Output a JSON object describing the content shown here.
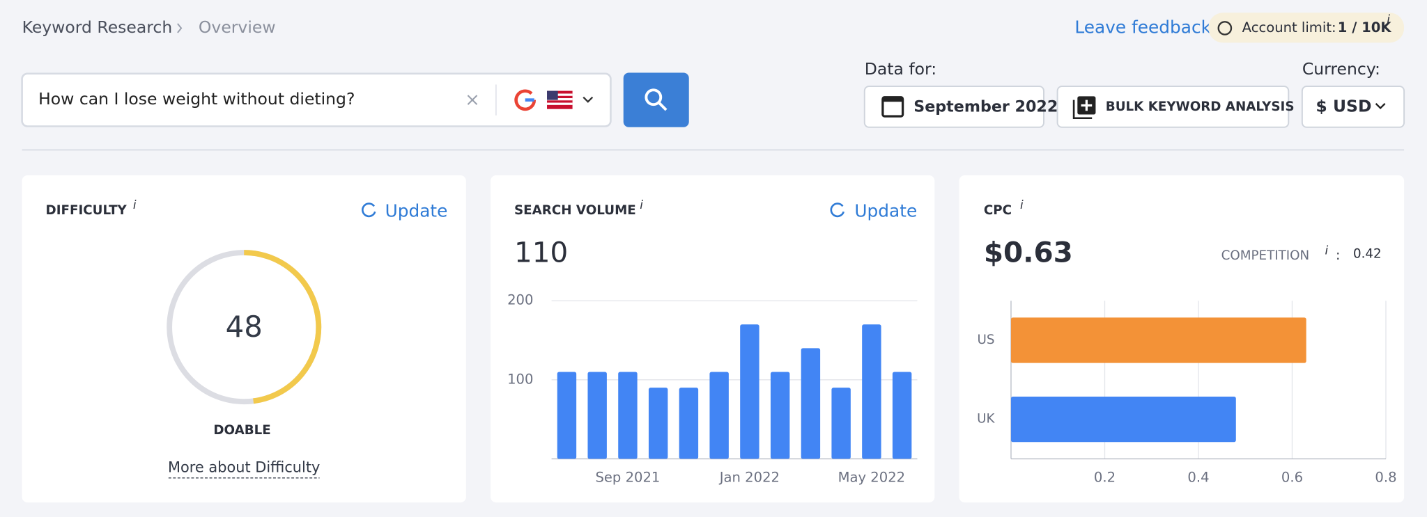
{
  "breadcrumb": [
    "Keyword Research",
    "Overview"
  ],
  "feedback": "Leave feedback",
  "account_limit": {
    "label": "Account limit:",
    "value": "1 / 10K",
    "info": "i"
  },
  "search": {
    "query": "How can I lose weight without dieting?"
  },
  "data_for": {
    "label": "Data for:",
    "month": "September 2022"
  },
  "bulk": "BULK KEYWORD ANALYSIS",
  "currency": {
    "label": "Currency:",
    "value": "$ USD"
  },
  "difficulty": {
    "title": "DIFFICULTY",
    "info": "i",
    "update": "Update",
    "value": 48,
    "rating": "DOABLE",
    "more": "More about Difficulty"
  },
  "chart_data": [
    {
      "type": "bar",
      "title": "SEARCH VOLUME",
      "info": "i",
      "update": "Update",
      "total": 110,
      "categories": [
        null,
        null,
        "Sep 2021",
        null,
        null,
        null,
        "Jan 2022",
        null,
        null,
        null,
        "May 2022",
        null
      ],
      "values": [
        110,
        110,
        110,
        90,
        90,
        110,
        170,
        110,
        140,
        90,
        170,
        110
      ],
      "color": "#4285f4",
      "ylim": [
        0,
        200
      ],
      "yticks": [
        100,
        200
      ],
      "grid": true
    },
    {
      "type": "barh",
      "title": "CPC",
      "info": "i",
      "value": "$0.63",
      "competition": {
        "label": "COMPETITION",
        "info": "i",
        "separator": ":",
        "value": 0.42
      },
      "categories": [
        "US",
        "UK"
      ],
      "values": [
        0.63,
        0.48
      ],
      "colors": [
        "#f39237",
        "#4285f4"
      ],
      "xlim": [
        0,
        0.8
      ],
      "xticks": [
        0.2,
        0.4,
        0.6,
        0.8
      ],
      "grid": true
    }
  ]
}
